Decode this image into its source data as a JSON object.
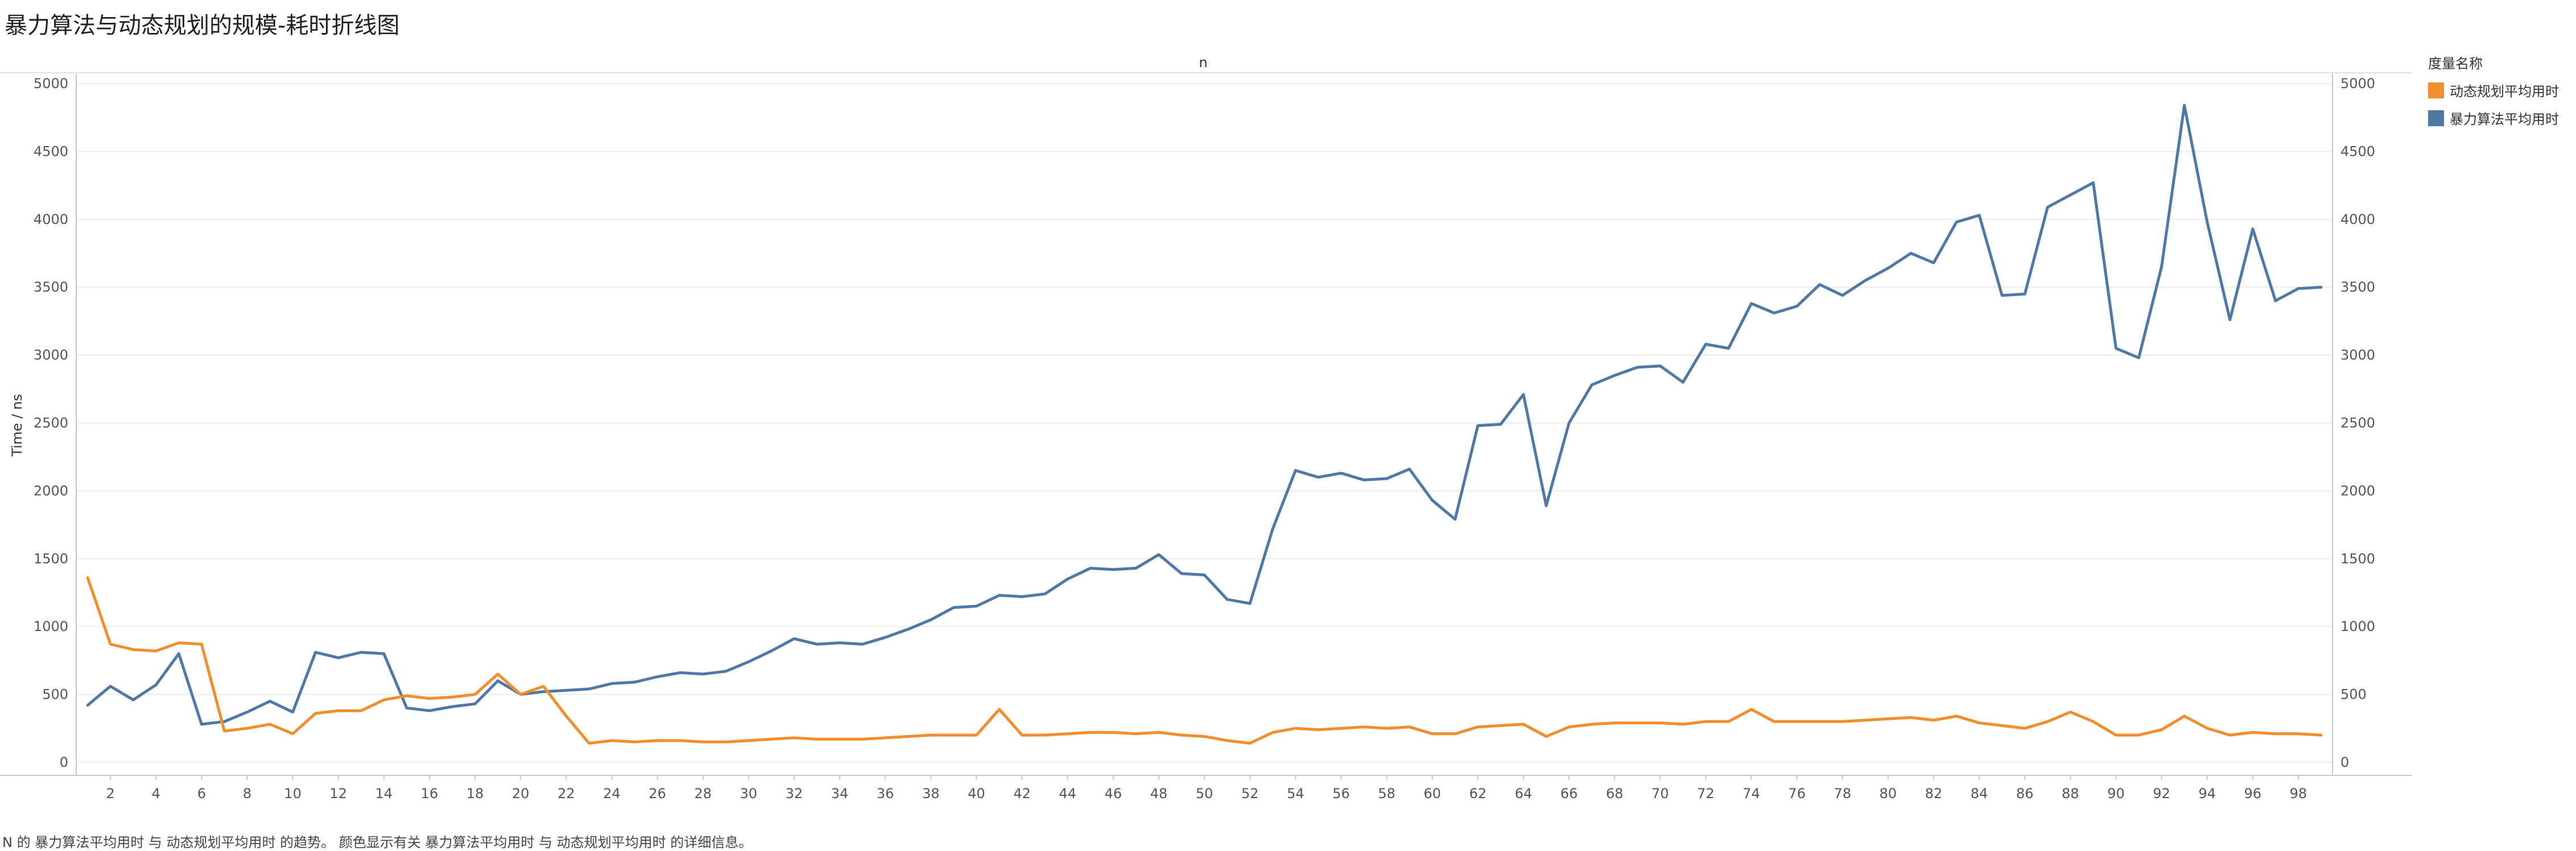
{
  "page": {
    "title": "暴力算法与动态规划的规模-耗时折线图",
    "caption": "N 的 暴力算法平均用时 与 动态规划平均用时 的趋势。 颜色显示有关 暴力算法平均用时 与 动态规划平均用时 的详细信息。"
  },
  "legend": {
    "title": "度量名称",
    "items": [
      {
        "label": "动态规划平均用时",
        "color": "#f28e2b"
      },
      {
        "label": "暴力算法平均用时",
        "color": "#4e79a7"
      }
    ]
  },
  "chart_data": {
    "type": "line",
    "title": "暴力算法与动态规划的规模-耗时折线图",
    "xlabel": "n",
    "ylabel": "Time / ns",
    "xlim": [
      0.5,
      99.5
    ],
    "ylim": [
      -80,
      5080
    ],
    "x_ticks": [
      2,
      4,
      6,
      8,
      10,
      12,
      14,
      16,
      18,
      20,
      22,
      24,
      26,
      28,
      30,
      32,
      34,
      36,
      38,
      40,
      42,
      44,
      46,
      48,
      50,
      52,
      54,
      56,
      58,
      60,
      62,
      64,
      66,
      68,
      70,
      72,
      74,
      76,
      78,
      80,
      82,
      84,
      86,
      88,
      90,
      92,
      94,
      96,
      98
    ],
    "y_ticks": [
      0,
      500,
      1000,
      1500,
      2000,
      2500,
      3000,
      3500,
      4000,
      4500,
      5000
    ],
    "dual_y_axis": true,
    "grid": true,
    "legend_position": "right",
    "x": [
      1,
      2,
      3,
      4,
      5,
      6,
      7,
      8,
      9,
      10,
      11,
      12,
      13,
      14,
      15,
      16,
      17,
      18,
      19,
      20,
      21,
      22,
      23,
      24,
      25,
      26,
      27,
      28,
      29,
      30,
      31,
      32,
      33,
      34,
      35,
      36,
      37,
      38,
      39,
      40,
      41,
      42,
      43,
      44,
      45,
      46,
      47,
      48,
      49,
      50,
      51,
      52,
      53,
      54,
      55,
      56,
      57,
      58,
      59,
      60,
      61,
      62,
      63,
      64,
      65,
      66,
      67,
      68,
      69,
      70,
      71,
      72,
      73,
      74,
      75,
      76,
      77,
      78,
      79,
      80,
      81,
      82,
      83,
      84,
      85,
      86,
      87,
      88,
      89,
      90,
      91,
      92,
      93,
      94,
      95,
      96,
      97,
      98,
      99
    ],
    "series": [
      {
        "name": "动态规划平均用时",
        "color": "#f28e2b",
        "values": [
          1360,
          870,
          830,
          820,
          880,
          870,
          230,
          250,
          280,
          210,
          360,
          380,
          380,
          460,
          490,
          470,
          480,
          500,
          650,
          500,
          560,
          340,
          140,
          160,
          150,
          160,
          160,
          150,
          150,
          160,
          170,
          180,
          170,
          170,
          170,
          180,
          190,
          200,
          200,
          200,
          390,
          200,
          200,
          210,
          220,
          220,
          210,
          220,
          200,
          190,
          160,
          140,
          220,
          250,
          240,
          250,
          260,
          250,
          260,
          210,
          210,
          260,
          270,
          280,
          190,
          260,
          280,
          290,
          290,
          290,
          280,
          300,
          300,
          390,
          300,
          300,
          300,
          300,
          310,
          320,
          330,
          310,
          340,
          290,
          270,
          250,
          300,
          370,
          300,
          200,
          200,
          240,
          340,
          250,
          200,
          220,
          210,
          210,
          200
        ]
      },
      {
        "name": "暴力算法平均用时",
        "color": "#4e79a7",
        "values": [
          420,
          560,
          460,
          570,
          800,
          280,
          300,
          370,
          450,
          370,
          810,
          770,
          810,
          800,
          400,
          380,
          410,
          430,
          600,
          500,
          520,
          530,
          540,
          580,
          590,
          630,
          660,
          650,
          670,
          740,
          820,
          910,
          870,
          880,
          870,
          920,
          980,
          1050,
          1140,
          1150,
          1230,
          1220,
          1240,
          1350,
          1430,
          1420,
          1430,
          1530,
          1390,
          1380,
          1200,
          1170,
          1720,
          2150,
          2100,
          2130,
          2080,
          2090,
          2160,
          1930,
          1790,
          2480,
          2490,
          2710,
          1890,
          2500,
          2780,
          2850,
          2910,
          2920,
          2800,
          3080,
          3050,
          3380,
          3310,
          3360,
          3520,
          3440,
          3550,
          3640,
          3750,
          3680,
          3980,
          4030,
          3440,
          3450,
          4090,
          4180,
          4270,
          3050,
          2980,
          3650,
          4840,
          3980,
          3260,
          3930,
          3400,
          3490,
          3500
        ]
      }
    ]
  }
}
